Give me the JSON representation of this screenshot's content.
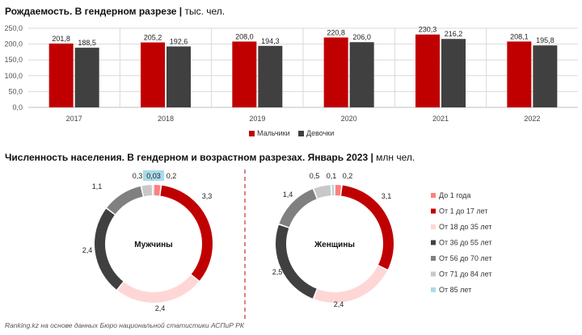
{
  "top_title": {
    "main": "Рождаемость. В гендерном разрезе",
    "unit": "тыс. чел."
  },
  "bottom_title": {
    "main": "Численность населения. В гендерном и возрастном разрезах. Январь 2023",
    "unit": "млн чел."
  },
  "footer": "Ranking.kz на основе данных Бюро национальной статистики АСПиР РК",
  "colors": {
    "boys": "#c00000",
    "girls": "#404040"
  },
  "chart_data": [
    {
      "type": "bar",
      "categories": [
        "2017",
        "2018",
        "2019",
        "2020",
        "2021",
        "2022"
      ],
      "series": [
        {
          "name": "Мальчики",
          "values": [
            201.8,
            205.2,
            208.0,
            220.8,
            230.3,
            208.1
          ],
          "labels": [
            "201,8",
            "205,2",
            "208,0",
            "220,8",
            "230,3",
            "208,1"
          ]
        },
        {
          "name": "Девочки",
          "values": [
            188.5,
            192.6,
            194.3,
            206.0,
            216.2,
            195.8
          ],
          "labels": [
            "188,5",
            "192,6",
            "194,3",
            "206,0",
            "216,2",
            "195,8"
          ]
        }
      ],
      "ylim": [
        0,
        250
      ],
      "yticks": [
        "0,0",
        "50,0",
        "100,0",
        "150,0",
        "200,0",
        "250,0"
      ],
      "grid": true,
      "legend": "bottom"
    },
    {
      "type": "pie",
      "center_label": "Мужчины",
      "categories": [
        "До 1 года",
        "От 1 до 17 лет",
        "От 18 до 35 лет",
        "От 36 до 55 лет",
        "От 56 до 70 лет",
        "От 71 до 84 лет",
        "От 85 лет"
      ],
      "values": [
        0.2,
        3.3,
        2.4,
        2.4,
        1.1,
        0.3,
        0.03
      ],
      "labels": [
        "0,2",
        "3,3",
        "2,4",
        "2,4",
        "1,1",
        "0,3",
        "0,03"
      ],
      "colors": [
        "#ff7f7f",
        "#c00000",
        "#ffd6d6",
        "#404040",
        "#808080",
        "#c8c8c8",
        "#a9dbe9"
      ]
    },
    {
      "type": "pie",
      "center_label": "Женщины",
      "categories": [
        "До 1 года",
        "От 1 до 17 лет",
        "От 18 до 35 лет",
        "От 36 до 55 лет",
        "От 56 до 70 лет",
        "От 71 до 84 лет",
        "От 85 лет"
      ],
      "values": [
        0.2,
        3.1,
        2.4,
        2.5,
        1.4,
        0.5,
        0.1
      ],
      "labels": [
        "0,2",
        "3,1",
        "2,4",
        "2,5",
        "1,4",
        "0,5",
        "0,1"
      ],
      "colors": [
        "#ff7f7f",
        "#c00000",
        "#ffd6d6",
        "#404040",
        "#808080",
        "#c8c8c8",
        "#a9dbe9"
      ]
    }
  ]
}
